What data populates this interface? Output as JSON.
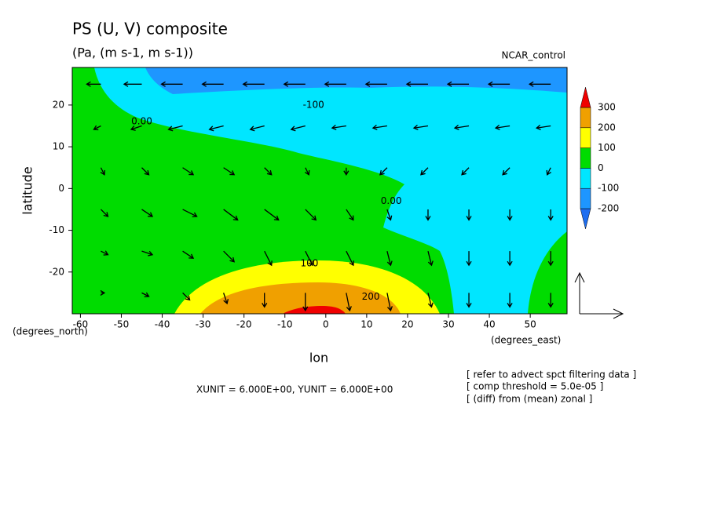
{
  "chart_data": {
    "type": "contour-vector",
    "title": "PS (U, V) composite",
    "subtitle": "(Pa, (m s-1, m s-1))",
    "run_label": "NCAR_control",
    "x_label": "lon",
    "y_label": "latitude",
    "x_unit": "(degrees_east)",
    "y_unit": "(degrees_north)",
    "vector_units": "XUNIT = 6.000E+00, YUNIT = 6.000E+00",
    "notes": [
      "[ refer to advect spct filtering data ]",
      "[ comp threshold = 5.0e-05 ]",
      "[ (diff) from (mean) zonal ]"
    ],
    "xlim": [
      -62,
      59
    ],
    "ylim": [
      -30,
      29
    ],
    "xticks": [
      -60,
      -50,
      -40,
      -30,
      -20,
      -10,
      0,
      10,
      20,
      30,
      40,
      50
    ],
    "yticks": [
      -20,
      -10,
      0,
      10,
      20
    ],
    "levels": [
      -200,
      -100,
      0,
      100,
      200,
      300
    ],
    "colors": [
      "#1e6ef0",
      "#1e96ff",
      "#00e6ff",
      "#00dc00",
      "#ffff00",
      "#f0a000",
      "#f00000"
    ],
    "contour_labels": [
      {
        "text": "-100",
        "lon": -3,
        "lat": 20
      },
      {
        "text": "0.00",
        "lon": -45,
        "lat": 16
      },
      {
        "text": "0.00",
        "lon": 16,
        "lat": -3
      },
      {
        "text": "100",
        "lon": -4,
        "lat": -18
      },
      {
        "text": "200",
        "lon": 11,
        "lat": -26
      }
    ],
    "vectors": {
      "lon": [
        -55,
        -45,
        -35,
        -25,
        -15,
        -5,
        5,
        15,
        25,
        35,
        45,
        55
      ],
      "lat": [
        25,
        15,
        5,
        -5,
        -15,
        -25
      ],
      "u": [
        [
          -2,
          -2.5,
          -3,
          -3,
          -3,
          -3,
          -3,
          -3,
          -3,
          -3,
          -3,
          -3
        ],
        [
          -1,
          -1.5,
          -2,
          -2,
          -2,
          -2,
          -2,
          -2,
          -2,
          -2,
          -2,
          -2
        ],
        [
          0.5,
          1,
          1.5,
          1.5,
          1,
          0.5,
          0,
          -1,
          -1,
          -1,
          -1,
          -0.5
        ],
        [
          1,
          1.5,
          2,
          2,
          2,
          1.5,
          1,
          0.5,
          0,
          0,
          0,
          0
        ],
        [
          1,
          1.5,
          1.5,
          1.5,
          1,
          1,
          1,
          0.5,
          0.5,
          0,
          0,
          0
        ],
        [
          0.5,
          1,
          1,
          0.5,
          0,
          0,
          0.5,
          0.5,
          0.5,
          0,
          0,
          0
        ]
      ],
      "v": [
        [
          0,
          0,
          0,
          0,
          0,
          0,
          0,
          0,
          0,
          0,
          0,
          0
        ],
        [
          -0.5,
          -0.5,
          -0.5,
          -0.5,
          -0.5,
          -0.5,
          -0.3,
          -0.3,
          -0.3,
          -0.3,
          -0.3,
          -0.3
        ],
        [
          -1,
          -1,
          -1,
          -1,
          -1,
          -1,
          -1,
          -1,
          -1,
          -1,
          -1,
          -1
        ],
        [
          -1,
          -1,
          -1,
          -1.5,
          -1.5,
          -1.5,
          -1.5,
          -1.5,
          -1.5,
          -1.5,
          -1.5,
          -1.5
        ],
        [
          -0.5,
          -0.5,
          -1,
          -1.5,
          -2,
          -2,
          -2,
          -2,
          -2,
          -2,
          -2,
          -2
        ],
        [
          0,
          -0.5,
          -1,
          -1.5,
          -2,
          -2.5,
          -2.5,
          -2.5,
          -2,
          -2,
          -2,
          -2
        ]
      ]
    }
  }
}
